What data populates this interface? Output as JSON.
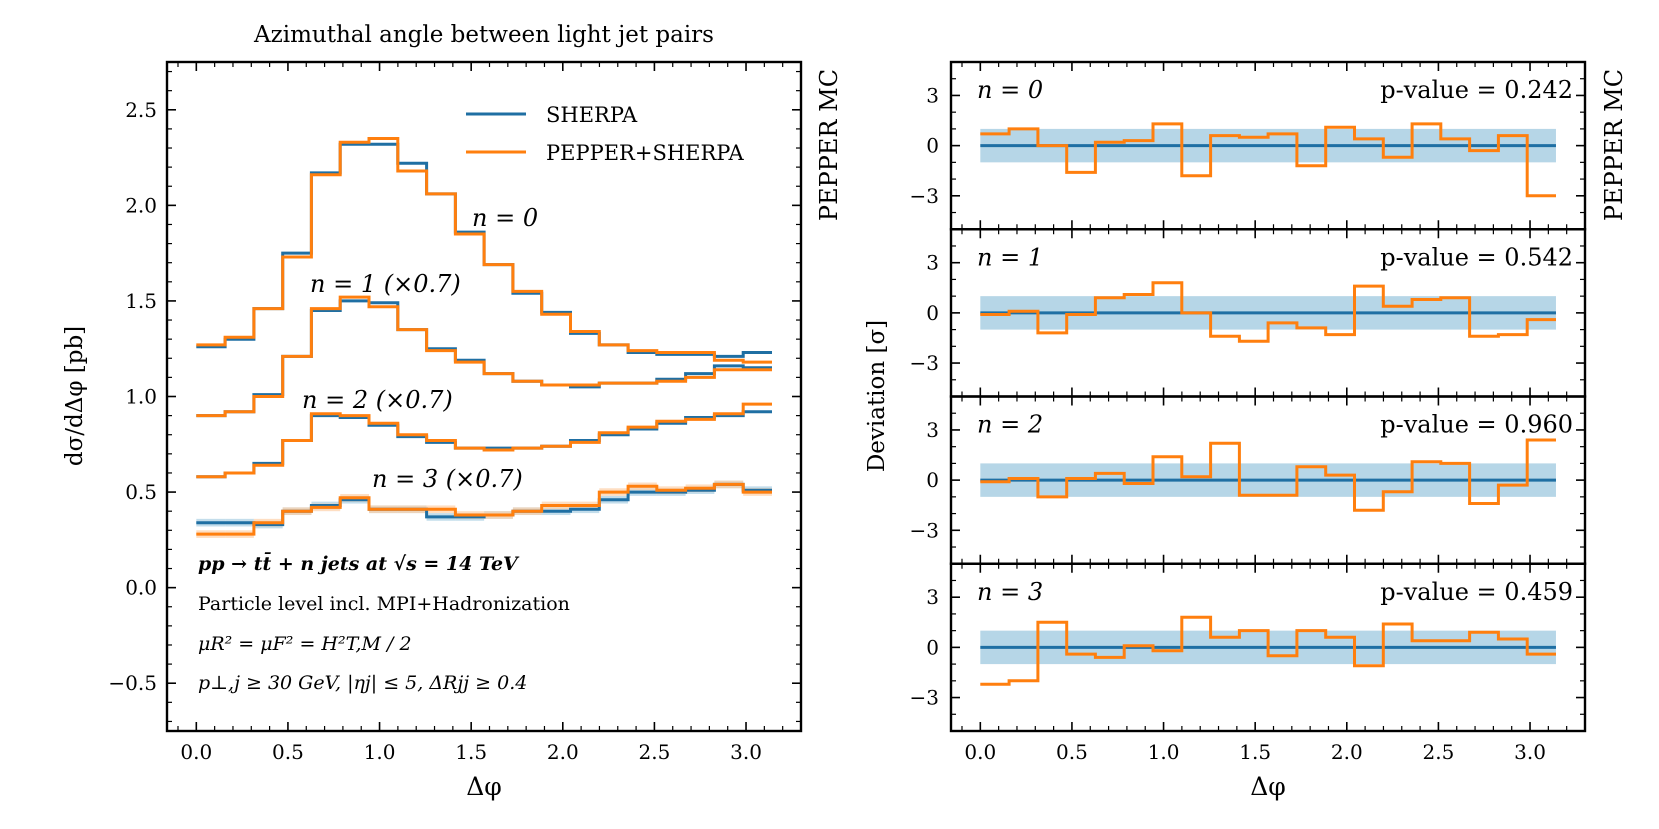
{
  "colors": {
    "sherpa": "#1f6fa3",
    "pepper": "#ff7f0e",
    "band": "#a9cfe3",
    "pepper_band": "#fdd0a8"
  },
  "texts": {
    "pepper_mc": "PEPPER MC",
    "process": "pp → tt̄ + n jets at √s = 14 TeV",
    "level": "Particle level incl. MPI+Hadronization",
    "scales": "μR² = μF² = H²T,M / 2",
    "cuts": "p⊥,j ≥ 30 GeV, |ηj| ≤ 5, ΔRjj ≥ 0.4"
  },
  "chart_data": [
    {
      "type": "line",
      "title": "Azimuthal angle between light jet pairs",
      "xlabel": "Δφ",
      "ylabel": "dσ/dΔφ [pb]",
      "xlim": [
        -0.16,
        3.3
      ],
      "ylim": [
        -0.75,
        2.75
      ],
      "xticks": [
        0.0,
        0.5,
        1.0,
        1.5,
        2.0,
        2.5,
        3.0
      ],
      "xtick_labels": [
        "0.0",
        "0.5",
        "1.0",
        "1.5",
        "2.0",
        "2.5",
        "3.0"
      ],
      "yticks": [
        -0.5,
        0.0,
        0.5,
        1.0,
        1.5,
        2.0,
        2.5
      ],
      "ytick_labels": [
        "−0.5",
        "0.0",
        "0.5",
        "1.0",
        "1.5",
        "2.0",
        "2.5"
      ],
      "legend": {
        "position": "top-right",
        "entries": [
          "SHERPA",
          "PEPPER+SHERPA"
        ]
      },
      "bin_edges": [
        0,
        0.1571,
        0.3142,
        0.4712,
        0.6283,
        0.7854,
        0.9425,
        1.0996,
        1.2566,
        1.4137,
        1.5708,
        1.7279,
        1.885,
        2.042,
        2.1991,
        2.3562,
        2.5133,
        2.6704,
        2.8274,
        2.9845,
        3.1416
      ],
      "series": [
        {
          "label": "n = 0",
          "sherpa": [
            1.26,
            1.3,
            1.46,
            1.75,
            2.17,
            2.32,
            2.32,
            2.22,
            2.06,
            1.86,
            1.69,
            1.54,
            1.44,
            1.33,
            1.27,
            1.23,
            1.22,
            1.22,
            1.21,
            1.23
          ],
          "pepper": [
            1.27,
            1.31,
            1.46,
            1.73,
            2.16,
            2.33,
            2.35,
            2.18,
            2.06,
            1.85,
            1.69,
            1.55,
            1.43,
            1.34,
            1.27,
            1.24,
            1.23,
            1.23,
            1.19,
            1.18
          ]
        },
        {
          "label": "n = 1 (×0.7)",
          "sherpa": [
            0.9,
            0.92,
            1.01,
            1.21,
            1.45,
            1.5,
            1.49,
            1.35,
            1.25,
            1.19,
            1.12,
            1.08,
            1.06,
            1.05,
            1.07,
            1.07,
            1.09,
            1.12,
            1.16,
            1.15
          ],
          "pepper": [
            0.9,
            0.92,
            1.0,
            1.21,
            1.46,
            1.52,
            1.47,
            1.35,
            1.24,
            1.18,
            1.12,
            1.08,
            1.06,
            1.06,
            1.07,
            1.07,
            1.08,
            1.1,
            1.14,
            1.14
          ]
        },
        {
          "label": "n = 2 (×0.7)",
          "sherpa": [
            0.58,
            0.6,
            0.65,
            0.77,
            0.9,
            0.89,
            0.85,
            0.79,
            0.76,
            0.73,
            0.73,
            0.73,
            0.74,
            0.77,
            0.8,
            0.83,
            0.86,
            0.89,
            0.9,
            0.92
          ],
          "pepper": [
            0.58,
            0.6,
            0.64,
            0.77,
            0.91,
            0.9,
            0.86,
            0.8,
            0.77,
            0.73,
            0.72,
            0.73,
            0.74,
            0.76,
            0.81,
            0.84,
            0.87,
            0.88,
            0.91,
            0.96
          ]
        },
        {
          "label": "n = 3 (×0.7)",
          "sherpa": [
            0.34,
            0.34,
            0.33,
            0.4,
            0.43,
            0.46,
            0.41,
            0.41,
            0.37,
            0.37,
            0.38,
            0.4,
            0.4,
            0.41,
            0.46,
            0.5,
            0.5,
            0.51,
            0.54,
            0.51
          ],
          "pepper": [
            0.28,
            0.28,
            0.34,
            0.4,
            0.42,
            0.47,
            0.41,
            0.41,
            0.41,
            0.38,
            0.38,
            0.4,
            0.43,
            0.43,
            0.5,
            0.53,
            0.51,
            0.52,
            0.54,
            0.5
          ]
        }
      ]
    },
    {
      "type": "line",
      "xlabel": "Δφ",
      "ylabel": "Deviation [σ]",
      "xlim": [
        -0.16,
        3.3
      ],
      "ylim": [
        -5,
        5
      ],
      "xticks": [
        0.0,
        0.5,
        1.0,
        1.5,
        2.0,
        2.5,
        3.0
      ],
      "xtick_labels": [
        "0.0",
        "0.5",
        "1.0",
        "1.5",
        "2.0",
        "2.5",
        "3.0"
      ],
      "yticks": [
        -3,
        0,
        3
      ],
      "ytick_labels": [
        "−3",
        "0",
        "3"
      ],
      "band": [
        -1,
        1
      ],
      "bin_edges": [
        0,
        0.1571,
        0.3142,
        0.4712,
        0.6283,
        0.7854,
        0.9425,
        1.0996,
        1.2566,
        1.4137,
        1.5708,
        1.7279,
        1.885,
        2.042,
        2.1991,
        2.3562,
        2.5133,
        2.6704,
        2.8274,
        2.9845,
        3.1416
      ],
      "panels": [
        {
          "label": "n = 0",
          "pvalue": "p-value = 0.242",
          "values": [
            0.7,
            1.0,
            0.0,
            -1.6,
            0.2,
            0.3,
            1.3,
            -1.8,
            0.6,
            0.5,
            0.7,
            -1.2,
            1.1,
            0.4,
            -0.7,
            1.3,
            0.4,
            -0.3,
            0.6,
            -3.0
          ]
        },
        {
          "label": "n = 1",
          "pvalue": "p-value = 0.542",
          "values": [
            -0.1,
            0.1,
            -1.2,
            -0.1,
            0.9,
            1.1,
            1.8,
            0.0,
            -1.4,
            -1.7,
            -0.6,
            -0.9,
            -1.3,
            1.6,
            0.4,
            0.8,
            0.9,
            -1.4,
            -1.3,
            -0.4
          ]
        },
        {
          "label": "n = 2",
          "pvalue": "p-value = 0.960",
          "values": [
            -0.1,
            0.1,
            -1.0,
            0.1,
            0.4,
            -0.2,
            1.4,
            0.2,
            2.2,
            -0.9,
            -0.9,
            0.8,
            0.3,
            -1.8,
            -0.7,
            1.1,
            1.0,
            -1.4,
            -0.3,
            2.4
          ]
        },
        {
          "label": "n = 3",
          "pvalue": "p-value = 0.459",
          "values": [
            -2.2,
            -2.0,
            1.5,
            -0.4,
            -0.6,
            0.1,
            -0.2,
            1.8,
            0.6,
            1.0,
            -0.5,
            1.0,
            0.6,
            -1.1,
            1.4,
            0.4,
            0.4,
            0.9,
            0.5,
            -0.4
          ]
        }
      ]
    }
  ]
}
